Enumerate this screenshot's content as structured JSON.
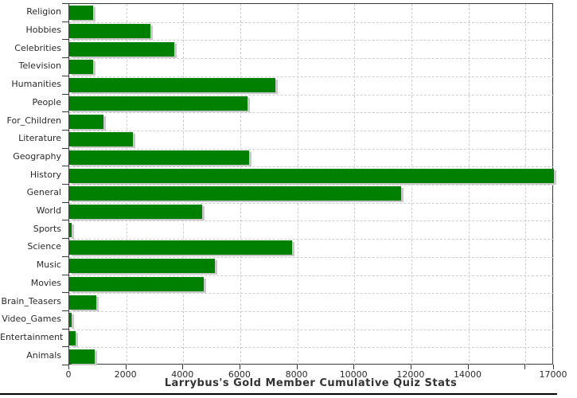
{
  "chart_data": {
    "type": "bar",
    "orientation": "horizontal",
    "title": "Larrybus's Gold Member Cumulative Quiz Stats",
    "categories": [
      "Religion",
      "Hobbies",
      "Celebrities",
      "Television",
      "Humanities",
      "People",
      "For_Children",
      "Literature",
      "Geography",
      "History",
      "General",
      "World",
      "Sports",
      "Science",
      "Music",
      "Movies",
      "Brain_Teasers",
      "Video_Games",
      "Entertainment",
      "Animals"
    ],
    "values": [
      840,
      2850,
      3690,
      840,
      7230,
      6250,
      1200,
      2230,
      6310,
      17000,
      11640,
      4660,
      80,
      7820,
      5110,
      4720,
      950,
      70,
      220,
      890
    ],
    "xlabel": "",
    "ylabel": "",
    "xlim": [
      0,
      17000
    ],
    "x_ticks": [
      0,
      2000,
      4000,
      6000,
      8000,
      10000,
      12000,
      14000,
      16000,
      17000
    ],
    "x_tick_labels": [
      "0",
      "2000",
      "4000",
      "6000",
      "8000",
      "10000",
      "12000",
      "14000",
      "",
      "17000"
    ],
    "grid": "dashed",
    "legend": "none",
    "bar_color": "#008000",
    "bar_shadow_color": "#c9c9c9",
    "grid_color": "#cfcfcf",
    "axis_color": "#3a3a3a",
    "text_color": "#2b2b2b"
  }
}
